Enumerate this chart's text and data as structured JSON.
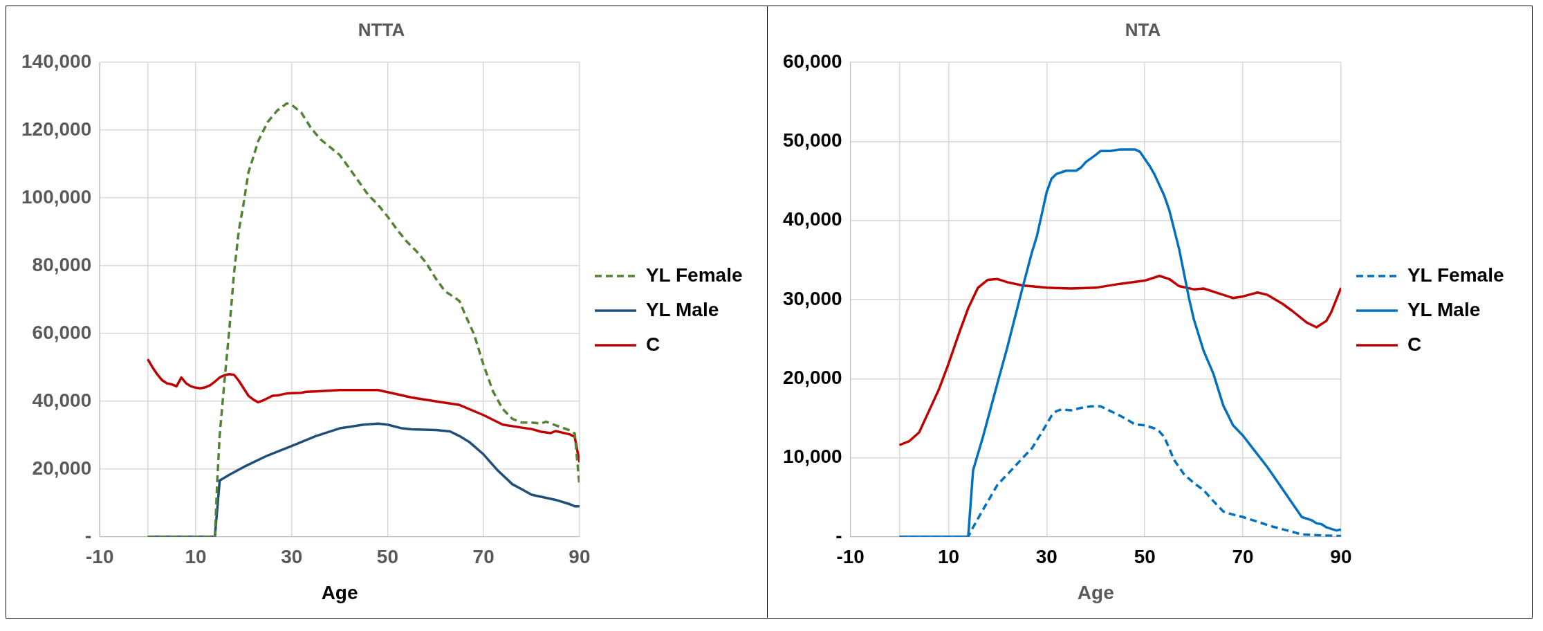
{
  "chart_data": [
    {
      "type": "line",
      "title": "NTTA",
      "xlabel": "Age",
      "xlim": [
        -10,
        90
      ],
      "xticks": [
        -10,
        {
          "value": 0,
          "label": null
        },
        10,
        30,
        50,
        70,
        90
      ],
      "ylim": [
        0,
        140000
      ],
      "yticks": [
        {
          "value": 0,
          "label": "-"
        },
        {
          "value": 20000,
          "label": "20,000"
        },
        {
          "value": 40000,
          "label": "40,000"
        },
        {
          "value": 60000,
          "label": "60,000"
        },
        {
          "value": 80000,
          "label": "80,000"
        },
        {
          "value": 100000,
          "label": "100,000"
        },
        {
          "value": 120000,
          "label": "120,000"
        },
        {
          "value": 140000,
          "label": "140,000"
        }
      ],
      "grid": true,
      "legend": "right",
      "marker": "none",
      "series": [
        {
          "name": "YL Female",
          "color": "#548235",
          "line_style": "dashed",
          "x": [
            0,
            14,
            14.5,
            15,
            16,
            17,
            18,
            19,
            20,
            21,
            22,
            23,
            25,
            27,
            29,
            30,
            32,
            34,
            36,
            38,
            40,
            42,
            44,
            46,
            48,
            50,
            52,
            54,
            56,
            58,
            60,
            62,
            64,
            65,
            66,
            68,
            70,
            72,
            74,
            76,
            78,
            80,
            82,
            83,
            85,
            88,
            89,
            90
          ],
          "values": [
            0,
            0,
            16600,
            30000,
            46000,
            61000,
            78000,
            90500,
            98500,
            107600,
            112000,
            116700,
            122400,
            125800,
            127900,
            127500,
            125200,
            120700,
            117300,
            115000,
            112700,
            108800,
            104800,
            100800,
            98000,
            94500,
            90600,
            87100,
            84300,
            80900,
            76300,
            72400,
            70600,
            69500,
            66100,
            59800,
            50700,
            42800,
            37700,
            34800,
            33700,
            33700,
            33400,
            34000,
            32900,
            31400,
            30500,
            15000
          ]
        },
        {
          "name": "YL Male",
          "color": "#1f4e79",
          "line_style": "solid",
          "x": [
            0,
            14,
            15,
            17,
            20,
            25,
            30,
            35,
            40,
            45,
            48,
            50,
            53,
            55,
            60,
            63,
            65,
            67,
            70,
            73,
            76,
            78,
            80,
            82,
            85,
            88,
            89,
            90
          ],
          "values": [
            0,
            0,
            16600,
            18300,
            20600,
            24000,
            26800,
            29700,
            32000,
            33100,
            33400,
            33100,
            32000,
            31700,
            31500,
            31100,
            29700,
            28000,
            24300,
            19500,
            15500,
            14000,
            12400,
            11800,
            10900,
            9600,
            9000,
            9000
          ]
        },
        {
          "name": "C",
          "color": "#c00000",
          "line_style": "solid",
          "x": [
            0,
            1,
            2,
            3,
            4,
            5,
            6,
            7,
            8,
            9,
            10,
            11,
            12,
            13,
            14,
            15,
            16,
            17,
            18,
            19,
            20,
            21,
            22,
            23,
            24,
            25,
            26,
            27,
            28,
            29,
            30,
            32,
            33,
            35,
            40,
            45,
            48,
            50,
            55,
            60,
            65,
            70,
            74,
            78,
            80,
            82,
            84,
            85,
            88,
            89,
            90
          ],
          "values": [
            52400,
            50000,
            47900,
            46200,
            45300,
            45000,
            44400,
            47000,
            45300,
            44400,
            44000,
            43800,
            44100,
            44700,
            45800,
            47000,
            47700,
            48000,
            47800,
            46000,
            43800,
            41600,
            40500,
            39700,
            40200,
            40900,
            41600,
            41700,
            42000,
            42300,
            42400,
            42500,
            42800,
            42900,
            43300,
            43300,
            43300,
            42700,
            41100,
            40000,
            38900,
            35900,
            33100,
            32200,
            31800,
            31000,
            30600,
            31200,
            30200,
            29500,
            22000
          ]
        }
      ]
    },
    {
      "type": "line",
      "title": "NTA",
      "xlabel": "Age",
      "xlim": [
        -10,
        90
      ],
      "xticks": [
        -10,
        {
          "value": 0,
          "label": null
        },
        10,
        30,
        50,
        70,
        90
      ],
      "ylim": [
        0,
        60000
      ],
      "yticks": [
        {
          "value": 0,
          "label": "-"
        },
        {
          "value": 10000,
          "label": "10,000"
        },
        {
          "value": 20000,
          "label": "20,000"
        },
        {
          "value": 30000,
          "label": "30,000"
        },
        {
          "value": 40000,
          "label": "40,000"
        },
        {
          "value": 50000,
          "label": "50,000"
        },
        {
          "value": 60000,
          "label": "60,000"
        }
      ],
      "grid": true,
      "legend": "right",
      "marker": "none",
      "series": [
        {
          "name": "YL Female",
          "color": "#0070c0",
          "line_style": "dashed",
          "x": [
            0,
            14,
            15,
            17,
            20,
            22,
            25,
            27,
            29,
            31,
            32,
            33,
            35,
            37,
            39,
            41,
            43,
            45,
            47,
            48,
            50,
            52,
            53,
            54,
            56,
            58,
            60,
            62,
            64,
            66,
            68,
            70,
            73,
            76,
            79,
            82,
            85,
            90
          ],
          "values": [
            0,
            0,
            1200,
            3400,
            6600,
            7900,
            9900,
            11200,
            13200,
            15300,
            15900,
            16100,
            16000,
            16300,
            16500,
            16500,
            15900,
            15300,
            14600,
            14200,
            14100,
            13700,
            13300,
            12600,
            9700,
            7900,
            6800,
            5900,
            4500,
            3200,
            2800,
            2500,
            1900,
            1300,
            800,
            300,
            200,
            100
          ]
        },
        {
          "name": "YL Male",
          "color": "#0070c0",
          "line_style": "solid",
          "x": [
            0,
            14,
            15,
            17,
            20,
            22,
            25,
            27,
            28,
            30,
            31,
            32,
            34,
            36,
            37,
            38,
            40,
            41,
            43,
            45,
            47,
            48,
            49,
            51,
            52,
            54,
            55,
            57,
            59,
            60,
            62,
            64,
            66,
            68,
            70,
            72,
            75,
            78,
            80,
            82,
            84,
            85,
            86,
            87,
            88,
            89,
            90
          ],
          "values": [
            0,
            0,
            8400,
            12600,
            19500,
            24000,
            31300,
            36000,
            38000,
            43600,
            45300,
            45900,
            46300,
            46300,
            46700,
            47400,
            48300,
            48800,
            48800,
            49000,
            49000,
            49000,
            48700,
            46900,
            45800,
            43100,
            41300,
            36400,
            30200,
            27500,
            23500,
            20600,
            16600,
            14100,
            12800,
            11200,
            8800,
            6100,
            4300,
            2500,
            2100,
            1700,
            1600,
            1200,
            1000,
            800,
            900
          ]
        },
        {
          "name": "C",
          "color": "#c00000",
          "line_style": "solid",
          "x": [
            0,
            2,
            4,
            6,
            8,
            10,
            12,
            14,
            16,
            18,
            20,
            22,
            25,
            30,
            35,
            40,
            45,
            50,
            53,
            55,
            57,
            60,
            62,
            65,
            68,
            70,
            73,
            75,
            78,
            80,
            83,
            85,
            87,
            88,
            90
          ],
          "values": [
            11600,
            12100,
            13200,
            15900,
            18600,
            21900,
            25500,
            28900,
            31500,
            32500,
            32600,
            32200,
            31800,
            31500,
            31400,
            31500,
            32000,
            32400,
            33000,
            32600,
            31700,
            31300,
            31400,
            30800,
            30200,
            30400,
            30900,
            30600,
            29500,
            28600,
            27100,
            26500,
            27300,
            28400,
            31500
          ]
        }
      ]
    }
  ]
}
